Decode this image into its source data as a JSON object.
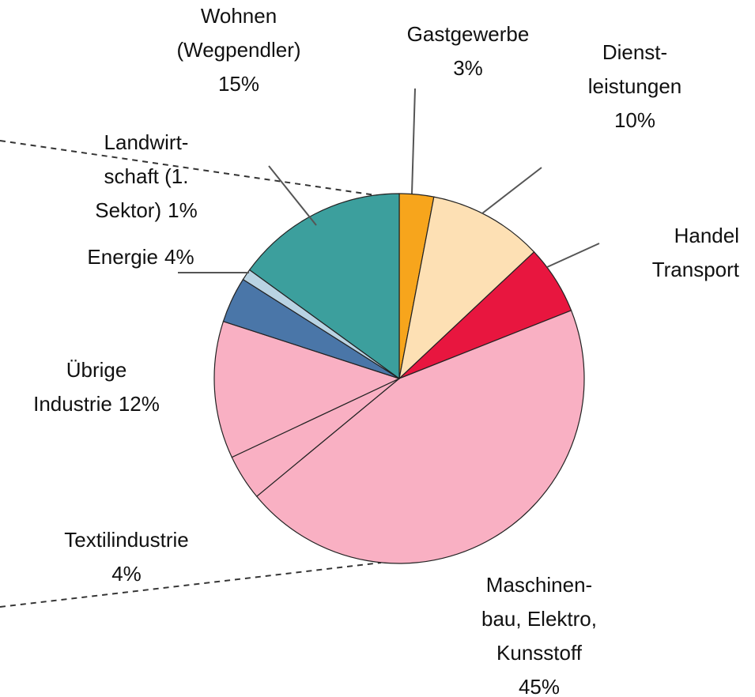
{
  "chart_data": {
    "type": "pie",
    "categories": [
      "Gastgewerbe",
      "Dienst-\nleistungen",
      "Handel\nTransport",
      "Maschinen-\nbau, Elektro,\nKunsstoff",
      "Textilindustrie",
      "Übrige\nIndustrie",
      "Energie",
      "Landwirt-\nschaft (1.\nSektor)",
      "Wohnen\n(Wegpendler)"
    ],
    "values": [
      3,
      10,
      6,
      45,
      4,
      12,
      4,
      1,
      15
    ],
    "value_labels": [
      "3%",
      "10%",
      null,
      "45%",
      "4%",
      "12%",
      "4%",
      "1%",
      "15%"
    ],
    "colors": [
      "#f7a51c",
      "#fde0b4",
      "#e8163f",
      "#f9b0c3",
      "#f9b0c3",
      "#f9b0c3",
      "#4a76a8",
      "#b9d3e3",
      "#3c9f9d"
    ]
  }
}
